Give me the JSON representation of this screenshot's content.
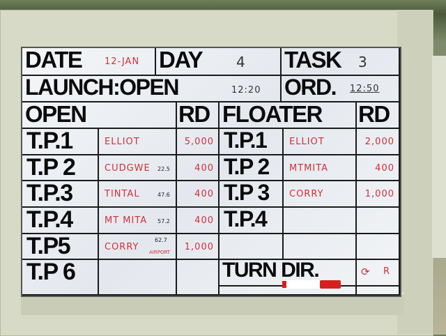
{
  "header_rows": {
    "date_label": "DATE",
    "date_value": "12-JAN",
    "day_label": "DAY",
    "day_value": "4",
    "task_label": "TASK",
    "task_value": "3",
    "launch_label": "LAUNCH:OPEN",
    "launch_time": "12:20",
    "ord_label": "ORD.",
    "ord_time": "12:50"
  },
  "columns": {
    "open": "OPEN",
    "rd": "RD",
    "floater": "FLOATER",
    "rd2": "RD"
  },
  "open_rows": [
    {
      "tp": "T.P.1",
      "name": "ELLIOT",
      "dist": "",
      "rd": "5,000"
    },
    {
      "tp": "T.P 2",
      "name": "CUDGWE",
      "dist": "22.5",
      "rd": "400"
    },
    {
      "tp": "T.P.3",
      "name": "TINTAL",
      "dist": "47.6",
      "rd": "400"
    },
    {
      "tp": "T.P.4",
      "name": "MT MITA",
      "dist": "57.2",
      "rd": "400"
    },
    {
      "tp": "T.P5",
      "name": "CORRY",
      "dist": "62.7",
      "note": "AIRPORT",
      "rd": "1,000"
    },
    {
      "tp": "T.P 6",
      "name": "",
      "dist": "",
      "rd": ""
    }
  ],
  "floater_rows": [
    {
      "tp": "T.P.1",
      "name": "ELLIOT",
      "rd": "2,000"
    },
    {
      "tp": "T.P 2",
      "name": "MTMITA",
      "rd": "400"
    },
    {
      "tp": "T.P 3",
      "name": "CORRY",
      "rd": "1,000"
    },
    {
      "tp": "T.P.4",
      "name": "",
      "rd": ""
    }
  ],
  "turn_dir": {
    "label": "TURN DIR.",
    "value": "R",
    "icon": "circled-arrow-icon"
  },
  "colors": {
    "ink_red": "#d0303a",
    "frame": "#d7dac6"
  }
}
